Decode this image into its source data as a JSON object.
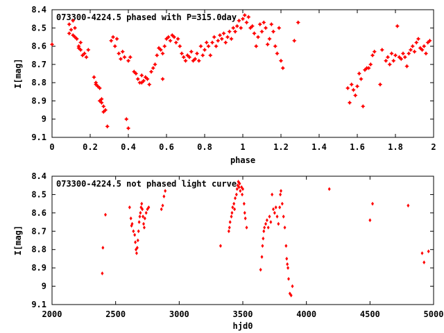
{
  "chart_data": [
    {
      "type": "scatter",
      "title": "073300-4224.5 phased with P=315.0day",
      "xlabel": "phase",
      "ylabel": "I[mag]",
      "xlim": [
        0,
        2
      ],
      "ylim": [
        8.4,
        9.1
      ],
      "y_inverted": true,
      "x_ticks": [
        0,
        0.2,
        0.4,
        0.6,
        0.8,
        1,
        1.2,
        1.4,
        1.6,
        1.8,
        2
      ],
      "x_tick_labels": [
        "0",
        "0.2",
        "0.4",
        "0.6",
        "0.8",
        "1",
        "1.2",
        "1.4",
        "1.6",
        "1.8",
        "2"
      ],
      "y_ticks": [
        8.4,
        8.5,
        8.6,
        8.7,
        8.8,
        8.9,
        9,
        9.1
      ],
      "y_tick_labels": [
        "8.4",
        "8.5",
        "8.6",
        "8.7",
        "8.8",
        "8.9",
        "9",
        "9.1"
      ],
      "marker_color": "#ff0000",
      "points": [
        [
          0.0,
          8.59
        ],
        [
          0.09,
          8.53
        ],
        [
          0.09,
          8.48
        ],
        [
          0.1,
          8.51
        ],
        [
          0.11,
          8.46
        ],
        [
          0.11,
          8.54
        ],
        [
          0.12,
          8.5
        ],
        [
          0.12,
          8.55
        ],
        [
          0.13,
          8.56
        ],
        [
          0.14,
          8.6
        ],
        [
          0.14,
          8.61
        ],
        [
          0.15,
          8.58
        ],
        [
          0.15,
          8.62
        ],
        [
          0.16,
          8.65
        ],
        [
          0.17,
          8.64
        ],
        [
          0.18,
          8.66
        ],
        [
          0.19,
          8.62
        ],
        [
          0.22,
          8.77
        ],
        [
          0.23,
          8.8
        ],
        [
          0.23,
          8.81
        ],
        [
          0.24,
          8.82
        ],
        [
          0.25,
          8.83
        ],
        [
          0.25,
          8.9
        ],
        [
          0.26,
          8.91
        ],
        [
          0.26,
          8.89
        ],
        [
          0.27,
          8.93
        ],
        [
          0.27,
          8.96
        ],
        [
          0.28,
          8.95
        ],
        [
          0.29,
          9.04
        ],
        [
          0.31,
          8.57
        ],
        [
          0.32,
          8.55
        ],
        [
          0.33,
          8.6
        ],
        [
          0.34,
          8.56
        ],
        [
          0.35,
          8.64
        ],
        [
          0.36,
          8.67
        ],
        [
          0.37,
          8.63
        ],
        [
          0.38,
          8.66
        ],
        [
          0.39,
          9.0
        ],
        [
          0.4,
          9.05
        ],
        [
          0.4,
          8.68
        ],
        [
          0.41,
          8.66
        ],
        [
          0.43,
          8.74
        ],
        [
          0.44,
          8.75
        ],
        [
          0.45,
          8.78
        ],
        [
          0.46,
          8.8
        ],
        [
          0.47,
          8.76
        ],
        [
          0.47,
          8.8
        ],
        [
          0.48,
          8.79
        ],
        [
          0.49,
          8.77
        ],
        [
          0.5,
          8.78
        ],
        [
          0.51,
          8.81
        ],
        [
          0.52,
          8.74
        ],
        [
          0.53,
          8.72
        ],
        [
          0.54,
          8.7
        ],
        [
          0.55,
          8.65
        ],
        [
          0.56,
          8.61
        ],
        [
          0.57,
          8.62
        ],
        [
          0.58,
          8.64
        ],
        [
          0.58,
          8.78
        ],
        [
          0.59,
          8.6
        ],
        [
          0.6,
          8.56
        ],
        [
          0.61,
          8.55
        ],
        [
          0.62,
          8.57
        ],
        [
          0.63,
          8.54
        ],
        [
          0.64,
          8.55
        ],
        [
          0.65,
          8.58
        ],
        [
          0.66,
          8.56
        ],
        [
          0.67,
          8.6
        ],
        [
          0.68,
          8.64
        ],
        [
          0.69,
          8.66
        ],
        [
          0.7,
          8.68
        ],
        [
          0.71,
          8.65
        ],
        [
          0.72,
          8.66
        ],
        [
          0.73,
          8.63
        ],
        [
          0.74,
          8.68
        ],
        [
          0.75,
          8.67
        ],
        [
          0.76,
          8.64
        ],
        [
          0.77,
          8.68
        ],
        [
          0.78,
          8.6
        ],
        [
          0.79,
          8.65
        ],
        [
          0.8,
          8.62
        ],
        [
          0.81,
          8.58
        ],
        [
          0.82,
          8.6
        ],
        [
          0.83,
          8.65
        ],
        [
          0.84,
          8.58
        ],
        [
          0.85,
          8.55
        ],
        [
          0.86,
          8.6
        ],
        [
          0.87,
          8.57
        ],
        [
          0.88,
          8.54
        ],
        [
          0.89,
          8.56
        ],
        [
          0.9,
          8.53
        ],
        [
          0.91,
          8.58
        ],
        [
          0.92,
          8.55
        ],
        [
          0.93,
          8.52
        ],
        [
          0.94,
          8.56
        ],
        [
          0.95,
          8.5
        ],
        [
          0.96,
          8.52
        ],
        [
          0.97,
          8.49
        ],
        [
          0.98,
          8.46
        ],
        [
          0.99,
          8.5
        ],
        [
          1.0,
          8.45
        ],
        [
          1.01,
          8.43
        ],
        [
          1.02,
          8.47
        ],
        [
          1.03,
          8.44
        ],
        [
          1.04,
          8.5
        ],
        [
          1.05,
          8.49
        ],
        [
          1.06,
          8.53
        ],
        [
          1.07,
          8.6
        ],
        [
          1.08,
          8.55
        ],
        [
          1.09,
          8.48
        ],
        [
          1.1,
          8.52
        ],
        [
          1.11,
          8.47
        ],
        [
          1.12,
          8.5
        ],
        [
          1.13,
          8.59
        ],
        [
          1.14,
          8.56
        ],
        [
          1.15,
          8.48
        ],
        [
          1.16,
          8.52
        ],
        [
          1.17,
          8.6
        ],
        [
          1.18,
          8.64
        ],
        [
          1.19,
          8.5
        ],
        [
          1.2,
          8.68
        ],
        [
          1.21,
          8.72
        ],
        [
          1.27,
          8.57
        ],
        [
          1.29,
          8.47
        ],
        [
          1.55,
          8.83
        ],
        [
          1.56,
          8.91
        ],
        [
          1.57,
          8.81
        ],
        [
          1.58,
          8.84
        ],
        [
          1.59,
          8.87
        ],
        [
          1.6,
          8.82
        ],
        [
          1.61,
          8.75
        ],
        [
          1.62,
          8.78
        ],
        [
          1.63,
          8.93
        ],
        [
          1.64,
          8.73
        ],
        [
          1.65,
          8.72
        ],
        [
          1.66,
          8.72
        ],
        [
          1.67,
          8.7
        ],
        [
          1.68,
          8.65
        ],
        [
          1.69,
          8.63
        ],
        [
          1.72,
          8.81
        ],
        [
          1.73,
          8.62
        ],
        [
          1.75,
          8.68
        ],
        [
          1.76,
          8.66
        ],
        [
          1.77,
          8.7
        ],
        [
          1.78,
          8.64
        ],
        [
          1.79,
          8.68
        ],
        [
          1.8,
          8.65
        ],
        [
          1.81,
          8.49
        ],
        [
          1.82,
          8.66
        ],
        [
          1.83,
          8.67
        ],
        [
          1.84,
          8.64
        ],
        [
          1.85,
          8.66
        ],
        [
          1.86,
          8.71
        ],
        [
          1.87,
          8.64
        ],
        [
          1.88,
          8.62
        ],
        [
          1.89,
          8.6
        ],
        [
          1.9,
          8.63
        ],
        [
          1.91,
          8.58
        ],
        [
          1.92,
          8.56
        ],
        [
          1.93,
          8.61
        ],
        [
          1.94,
          8.62
        ],
        [
          1.95,
          8.6
        ],
        [
          1.96,
          8.64
        ],
        [
          1.97,
          8.58
        ],
        [
          1.98,
          8.57
        ]
      ]
    },
    {
      "type": "scatter",
      "title": "073300-4224.5 not phased light curve",
      "xlabel": "hjd0",
      "ylabel": "I[mag]",
      "xlim": [
        2000,
        5000
      ],
      "ylim": [
        8.4,
        9.1
      ],
      "y_inverted": true,
      "x_ticks": [
        2000,
        2500,
        3000,
        3500,
        4000,
        4500,
        5000
      ],
      "x_tick_labels": [
        "2000",
        "2500",
        "3000",
        "3500",
        "4000",
        "4500",
        "5000"
      ],
      "y_ticks": [
        8.4,
        8.5,
        8.6,
        8.7,
        8.8,
        8.9,
        9,
        9.1
      ],
      "y_tick_labels": [
        "8.4",
        "8.5",
        "8.6",
        "8.7",
        "8.8",
        "8.9",
        "9",
        "9.1"
      ],
      "marker_color": "#ff0000",
      "points": [
        [
          2395,
          8.93
        ],
        [
          2400,
          8.79
        ],
        [
          2420,
          8.61
        ],
        [
          2610,
          8.57
        ],
        [
          2620,
          8.63
        ],
        [
          2625,
          8.67
        ],
        [
          2630,
          8.66
        ],
        [
          2640,
          8.7
        ],
        [
          2650,
          8.72
        ],
        [
          2655,
          8.76
        ],
        [
          2660,
          8.8
        ],
        [
          2665,
          8.82
        ],
        [
          2670,
          8.79
        ],
        [
          2675,
          8.75
        ],
        [
          2680,
          8.7
        ],
        [
          2685,
          8.65
        ],
        [
          2690,
          8.62
        ],
        [
          2695,
          8.6
        ],
        [
          2700,
          8.57
        ],
        [
          2705,
          8.55
        ],
        [
          2710,
          8.58
        ],
        [
          2715,
          8.62
        ],
        [
          2720,
          8.66
        ],
        [
          2725,
          8.68
        ],
        [
          2730,
          8.63
        ],
        [
          2740,
          8.6
        ],
        [
          2750,
          8.58
        ],
        [
          2760,
          8.57
        ],
        [
          2860,
          8.58
        ],
        [
          2870,
          8.56
        ],
        [
          2880,
          8.51
        ],
        [
          2890,
          8.48
        ],
        [
          3325,
          8.78
        ],
        [
          3390,
          8.7
        ],
        [
          3395,
          8.68
        ],
        [
          3400,
          8.65
        ],
        [
          3410,
          8.62
        ],
        [
          3415,
          8.6
        ],
        [
          3420,
          8.57
        ],
        [
          3430,
          8.55
        ],
        [
          3435,
          8.58
        ],
        [
          3440,
          8.52
        ],
        [
          3450,
          8.5
        ],
        [
          3455,
          8.47
        ],
        [
          3460,
          8.45
        ],
        [
          3465,
          8.43
        ],
        [
          3470,
          8.46
        ],
        [
          3475,
          8.44
        ],
        [
          3480,
          8.48
        ],
        [
          3490,
          8.46
        ],
        [
          3495,
          8.5
        ],
        [
          3500,
          8.47
        ],
        [
          3510,
          8.55
        ],
        [
          3515,
          8.6
        ],
        [
          3520,
          8.63
        ],
        [
          3530,
          8.68
        ],
        [
          3640,
          8.91
        ],
        [
          3650,
          8.84
        ],
        [
          3655,
          8.78
        ],
        [
          3660,
          8.74
        ],
        [
          3665,
          8.7
        ],
        [
          3670,
          8.68
        ],
        [
          3680,
          8.66
        ],
        [
          3690,
          8.64
        ],
        [
          3700,
          8.68
        ],
        [
          3710,
          8.62
        ],
        [
          3720,
          8.65
        ],
        [
          3730,
          8.5
        ],
        [
          3740,
          8.58
        ],
        [
          3750,
          8.6
        ],
        [
          3760,
          8.57
        ],
        [
          3770,
          8.62
        ],
        [
          3780,
          8.66
        ],
        [
          3790,
          8.57
        ],
        [
          3795,
          8.5
        ],
        [
          3800,
          8.48
        ],
        [
          3810,
          8.55
        ],
        [
          3820,
          8.62
        ],
        [
          3830,
          8.68
        ],
        [
          3840,
          8.78
        ],
        [
          3845,
          8.85
        ],
        [
          3850,
          8.88
        ],
        [
          3855,
          8.9
        ],
        [
          3860,
          8.96
        ],
        [
          3870,
          9.04
        ],
        [
          3880,
          9.05
        ],
        [
          3890,
          9.0
        ],
        [
          4180,
          8.47
        ],
        [
          4500,
          8.64
        ],
        [
          4520,
          8.55
        ],
        [
          4800,
          8.56
        ],
        [
          4910,
          8.82
        ],
        [
          4925,
          8.87
        ],
        [
          4960,
          8.81
        ]
      ]
    }
  ]
}
